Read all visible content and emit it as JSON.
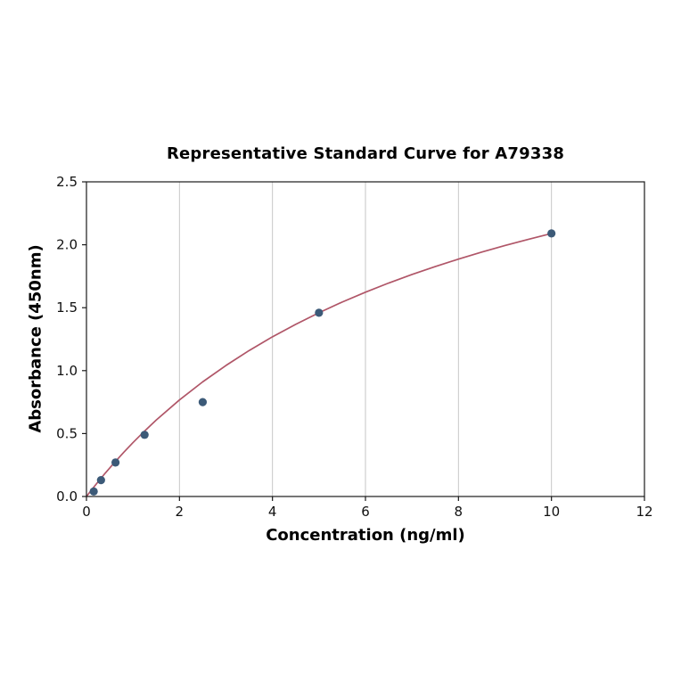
{
  "chart_data": {
    "type": "scatter",
    "title": "Representative Standard Curve for A79338",
    "xlabel": "Concentration (ng/ml)",
    "ylabel": "Absorbance (450nm)",
    "xlim": [
      0,
      12
    ],
    "ylim": [
      0,
      2.5
    ],
    "xticks": [
      0,
      2,
      4,
      6,
      8,
      10,
      12
    ],
    "xtick_labels": [
      "0",
      "2",
      "4",
      "6",
      "8",
      "10",
      "12"
    ],
    "yticks": [
      0,
      0.5,
      1.0,
      1.5,
      2.0,
      2.5
    ],
    "ytick_labels": [
      "0.0",
      "0.5",
      "1.0",
      "1.5",
      "2.0",
      "2.5"
    ],
    "grid": "vertical",
    "legend": "none",
    "points": {
      "x": [
        0.156,
        0.313,
        0.625,
        1.25,
        2.5,
        5,
        10
      ],
      "y": [
        0.04,
        0.13,
        0.27,
        0.49,
        0.75,
        1.46,
        2.09
      ]
    },
    "fit_curve": {
      "x": [
        0,
        0.05,
        0.1,
        0.2,
        0.4,
        0.6,
        0.8,
        1.0,
        1.25,
        1.5,
        2.0,
        2.5,
        3.0,
        3.5,
        4.0,
        4.5,
        5.0,
        5.5,
        6.0,
        6.5,
        7.0,
        7.5,
        8.0,
        8.5,
        9.0,
        9.5,
        10.0
      ],
      "y": [
        0,
        0.024,
        0.048,
        0.094,
        0.184,
        0.269,
        0.35,
        0.428,
        0.52,
        0.607,
        0.767,
        0.911,
        1.041,
        1.16,
        1.269,
        1.368,
        1.46,
        1.545,
        1.623,
        1.696,
        1.764,
        1.827,
        1.886,
        1.942,
        1.994,
        2.043,
        2.09
      ]
    },
    "colors": {
      "point": "#3c5a78",
      "curve": "#b05668",
      "grid": "#c6c6c6",
      "axis": "#1a1a1a"
    }
  }
}
